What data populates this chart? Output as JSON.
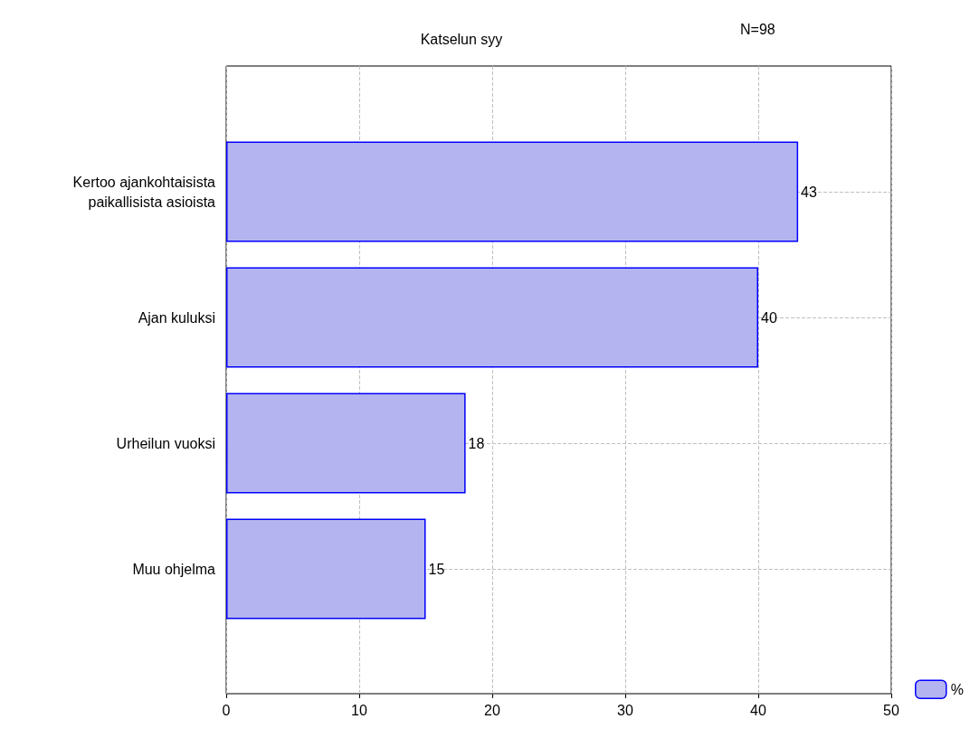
{
  "chart_data": {
    "type": "bar",
    "orientation": "horizontal",
    "title": "Katselun syy",
    "annotations": [
      "N=98"
    ],
    "categories": [
      "Kertoo ajankohtaisista\npaikallisista asioista",
      "Ajan kuluksi",
      "Urheilun vuoksi",
      "Muu ohjelma"
    ],
    "series": [
      {
        "name": "%",
        "color": "#b4b4f0",
        "values": [
          43,
          40,
          18,
          15
        ]
      }
    ],
    "xlim": [
      0,
      50
    ],
    "xticks": [
      0,
      10,
      20,
      30,
      40,
      50
    ],
    "grid": true,
    "legend": "bottom right",
    "data_labels": true
  }
}
